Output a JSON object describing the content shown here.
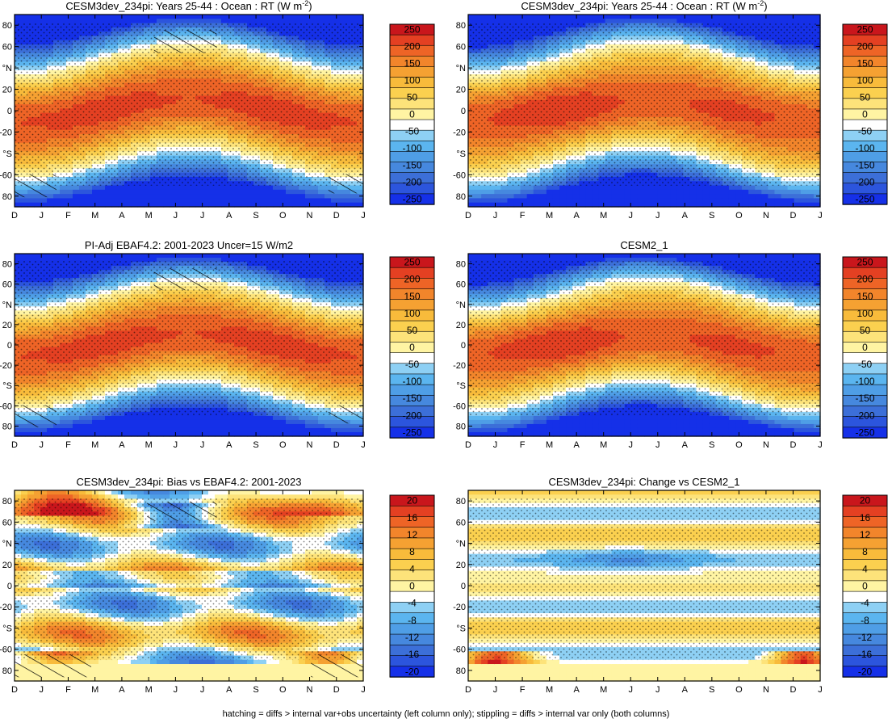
{
  "caption": "hatching = diffs > internal var+obs uncertainty (left column only); stippling = diffs > internal var only (both columns)",
  "palette_main": [
    "#1530e8",
    "#2c55dd",
    "#3c6fd8",
    "#4688de",
    "#4f9ee6",
    "#5bb5ef",
    "#8ed0f4",
    "#ffffff",
    "#fff4a3",
    "#fde37a",
    "#fbd04f",
    "#f8bb3b",
    "#f5a132",
    "#f2852b",
    "#ee6426",
    "#e44022",
    "#c9161c"
  ],
  "palette_diff": [
    "#1530e8",
    "#2c55dd",
    "#3c6fd8",
    "#4688de",
    "#4f9ee6",
    "#5bb5ef",
    "#8ed0f4",
    "#ffffff",
    "#fff4a3",
    "#fde37a",
    "#fbd04f",
    "#f8bb3b",
    "#f5a132",
    "#f2852b",
    "#ee6426",
    "#e44022",
    "#c9161c"
  ],
  "colorbar_main_labels": [
    "250",
    "200",
    "150",
    "100",
    "50",
    "0",
    "-50",
    "-100",
    "-150",
    "-200",
    "-250"
  ],
  "colorbar_diff_labels": [
    "20",
    "16",
    "12",
    "8",
    "4",
    "0",
    "-4",
    "-8",
    "-12",
    "-16",
    "-20"
  ],
  "x_ticks": [
    "D",
    "J",
    "F",
    "M",
    "A",
    "M",
    "J",
    "J",
    "A",
    "S",
    "O",
    "N",
    "D",
    "J"
  ],
  "y_ticks": [
    "80",
    "60",
    "°N",
    "20",
    "0",
    "-20",
    "°S",
    "-60",
    "80"
  ],
  "chart_data": [
    {
      "type": "heatmap",
      "title": "CESM3dev_234pi: Years 25-44 : Ocean : RT (W m",
      "title_sup": "-2",
      "title_tail": ")",
      "kind": "main",
      "hatch": "upper",
      "colorbar": "main"
    },
    {
      "type": "heatmap",
      "title": "CESM3dev_234pi: Years 25-44 : Ocean : RT (W m",
      "title_sup": "-2",
      "title_tail": ")",
      "kind": "main",
      "hatch": "none",
      "colorbar": "main"
    },
    {
      "type": "heatmap",
      "title": "PI-Adj EBAF4.2: 2001-2023 Uncer=15 W/m2",
      "title_sup": "",
      "title_tail": "",
      "kind": "main",
      "hatch": "upper",
      "colorbar": "main"
    },
    {
      "type": "heatmap",
      "title": "CESM2_1",
      "title_sup": "",
      "title_tail": "",
      "kind": "main",
      "hatch": "none",
      "colorbar": "main"
    },
    {
      "type": "heatmap",
      "title": "CESM3dev_234pi: Bias vs EBAF4.2: 2001-2023",
      "title_sup": "",
      "title_tail": "",
      "kind": "bias",
      "hatch": "bias",
      "colorbar": "diff"
    },
    {
      "type": "heatmap",
      "title": "CESM3dev_234pi: Change vs CESM2_1",
      "title_sup": "",
      "title_tail": "",
      "kind": "change",
      "hatch": "none",
      "colorbar": "diff"
    }
  ]
}
